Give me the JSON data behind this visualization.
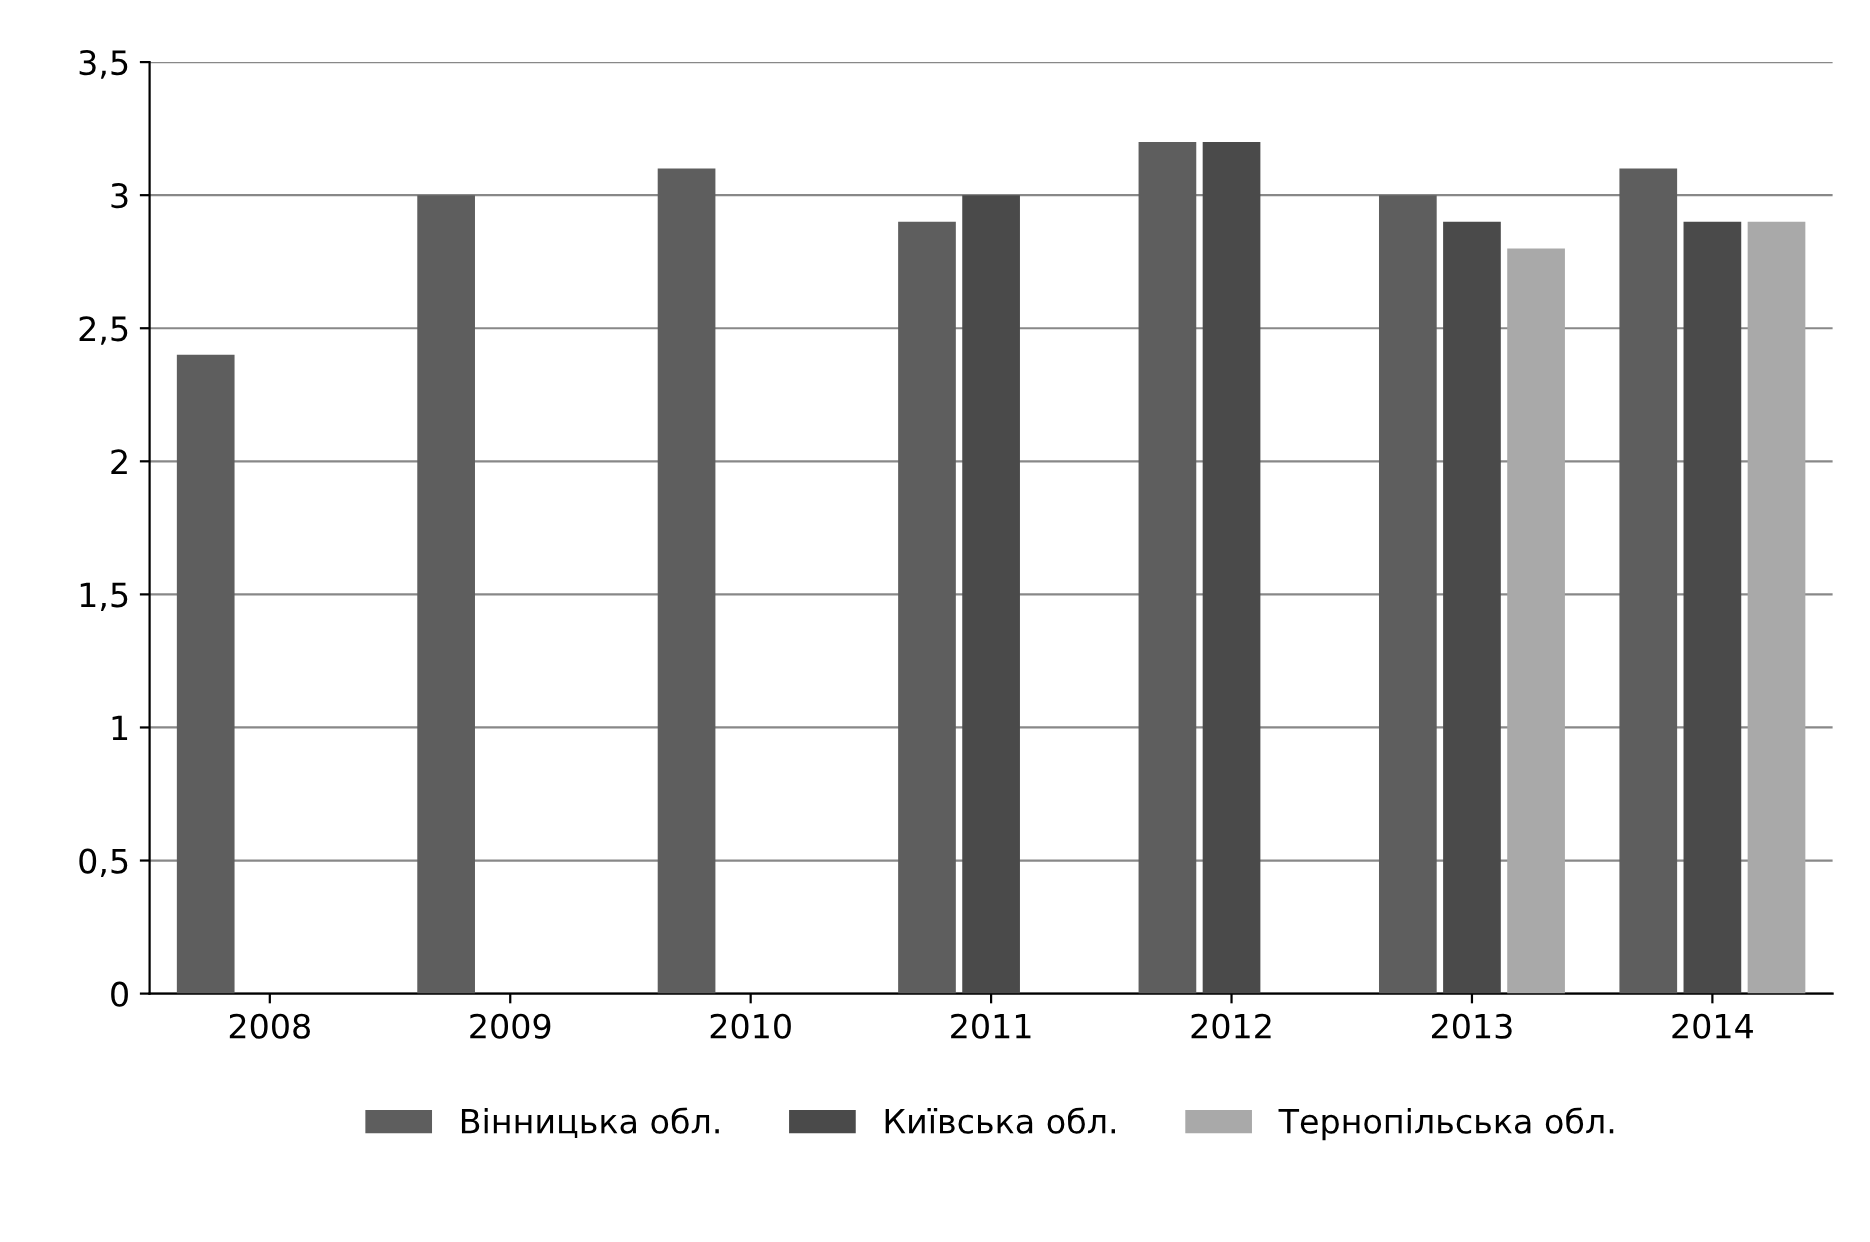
{
  "chart_data": {
    "type": "bar",
    "categories": [
      "2008",
      "2009",
      "2010",
      "2011",
      "2012",
      "2013",
      "2014"
    ],
    "series": [
      {
        "name": "Вінницька обл.",
        "color": "#5e5e5e",
        "values": [
          2.4,
          3.0,
          3.1,
          2.9,
          3.2,
          3.0,
          3.1
        ]
      },
      {
        "name": "Київська обл.",
        "color": "#4a4a4a",
        "values": [
          null,
          null,
          null,
          3.0,
          3.2,
          2.9,
          2.9
        ]
      },
      {
        "name": "Тернопільська обл.",
        "color": "#a9a9a9",
        "values": [
          null,
          null,
          null,
          null,
          null,
          2.8,
          2.9
        ]
      }
    ],
    "ylim": [
      0,
      3.5
    ],
    "yticks": [
      0,
      {
        "value": 0.5,
        "label": "0,5"
      },
      1,
      {
        "value": 1.5,
        "label": "1,5"
      },
      2,
      {
        "value": 2.5,
        "label": "2,5"
      },
      3,
      {
        "value": 3.5,
        "label": "3,5"
      }
    ],
    "grid": "y",
    "legend": "bottom"
  }
}
